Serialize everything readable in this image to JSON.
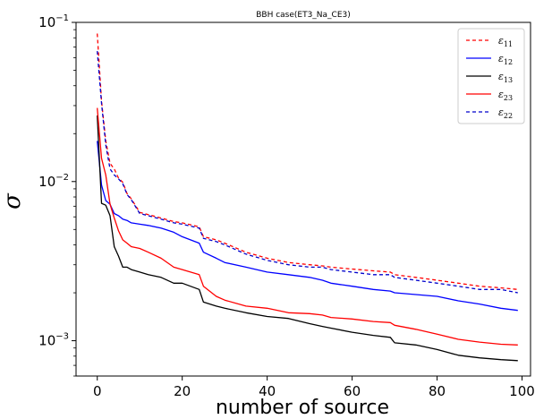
{
  "chart_data": {
    "type": "line",
    "title": "BBH case(ET3_Na_CE3)",
    "xlabel": "number of source",
    "ylabel": "σ",
    "xlim": [
      -5,
      102
    ],
    "ylim": [
      0.0006,
      0.1
    ],
    "yscale": "log",
    "grid": false,
    "legend_position": "top-right",
    "x_ticks": [
      0,
      20,
      40,
      60,
      80,
      100
    ],
    "y_ticks": [
      {
        "value": 0.001,
        "base": "10",
        "exp": "−3"
      },
      {
        "value": 0.01,
        "base": "10",
        "exp": "−2"
      },
      {
        "value": 0.1,
        "base": "10",
        "exp": "−1"
      }
    ],
    "x": [
      0,
      1,
      2,
      3,
      4,
      5,
      6,
      7,
      8,
      10,
      12,
      15,
      18,
      20,
      24,
      25,
      28,
      30,
      35,
      40,
      45,
      50,
      53,
      55,
      60,
      65,
      69,
      70,
      75,
      80,
      85,
      90,
      95,
      99
    ],
    "series": [
      {
        "name": "ε",
        "sub": "11",
        "color": "#ff0000",
        "dash": "4,3",
        "values": [
          0.085,
          0.032,
          0.018,
          0.013,
          0.012,
          0.0105,
          0.0099,
          0.0084,
          0.0078,
          0.0064,
          0.0062,
          0.0059,
          0.0056,
          0.0055,
          0.0052,
          0.0045,
          0.0043,
          0.0041,
          0.0036,
          0.0033,
          0.0031,
          0.003,
          0.00295,
          0.0029,
          0.00282,
          0.00275,
          0.0027,
          0.0026,
          0.0025,
          0.0024,
          0.0023,
          0.0022,
          0.00215,
          0.0021
        ]
      },
      {
        "name": "ε",
        "sub": "12",
        "color": "#0000ff",
        "dash": "",
        "values": [
          0.018,
          0.0095,
          0.0076,
          0.0072,
          0.0063,
          0.0061,
          0.0058,
          0.0057,
          0.0055,
          0.0054,
          0.0053,
          0.0051,
          0.0048,
          0.0045,
          0.0041,
          0.0036,
          0.0033,
          0.0031,
          0.0029,
          0.0027,
          0.0026,
          0.0025,
          0.0024,
          0.0023,
          0.0022,
          0.0021,
          0.00205,
          0.002,
          0.00195,
          0.0019,
          0.00178,
          0.0017,
          0.0016,
          0.00155
        ]
      },
      {
        "name": "ε",
        "sub": "13",
        "color": "#000000",
        "dash": "",
        "values": [
          0.026,
          0.0073,
          0.0071,
          0.0061,
          0.0039,
          0.0034,
          0.0029,
          0.0029,
          0.0028,
          0.0027,
          0.0026,
          0.0025,
          0.0023,
          0.0023,
          0.0021,
          0.00175,
          0.00165,
          0.0016,
          0.0015,
          0.00142,
          0.00138,
          0.00128,
          0.00123,
          0.0012,
          0.00113,
          0.00108,
          0.00105,
          0.00097,
          0.00094,
          0.00088,
          0.00081,
          0.00078,
          0.00076,
          0.00075
        ]
      },
      {
        "name": "ε",
        "sub": "23",
        "color": "#ff0000",
        "dash": "",
        "values": [
          0.029,
          0.014,
          0.011,
          0.0072,
          0.0059,
          0.0049,
          0.0043,
          0.0041,
          0.0039,
          0.0038,
          0.0036,
          0.0033,
          0.0029,
          0.0028,
          0.0026,
          0.0022,
          0.0019,
          0.0018,
          0.00165,
          0.0016,
          0.0015,
          0.00148,
          0.00145,
          0.0014,
          0.00137,
          0.00132,
          0.0013,
          0.00125,
          0.00118,
          0.0011,
          0.00102,
          0.00098,
          0.00095,
          0.00094
        ]
      },
      {
        "name": "ε",
        "sub": "22",
        "color": "#0000cc",
        "dash": "4,3",
        "values": [
          0.066,
          0.031,
          0.017,
          0.012,
          0.011,
          0.0104,
          0.0097,
          0.0083,
          0.0077,
          0.0063,
          0.0061,
          0.0058,
          0.0055,
          0.0054,
          0.0051,
          0.0044,
          0.0042,
          0.004,
          0.0035,
          0.0032,
          0.003,
          0.0029,
          0.0029,
          0.0028,
          0.0027,
          0.0026,
          0.0026,
          0.0025,
          0.0024,
          0.0023,
          0.0022,
          0.0021,
          0.0021,
          0.002
        ]
      }
    ]
  }
}
